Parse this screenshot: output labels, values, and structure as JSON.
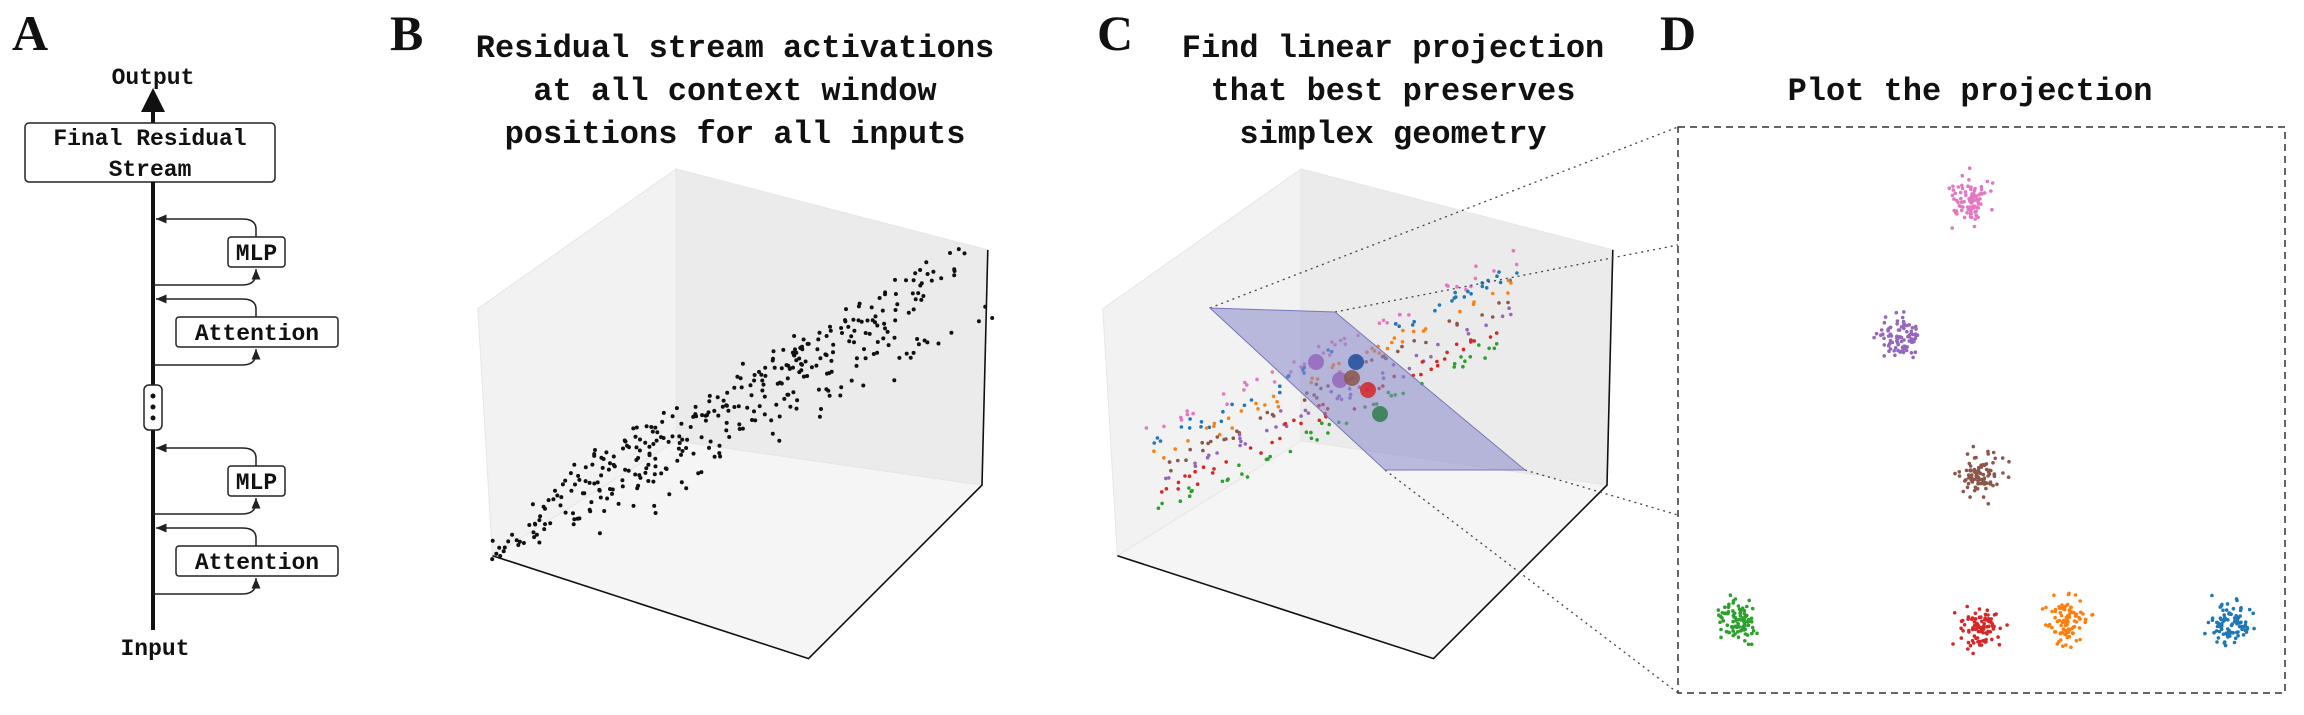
{
  "panel_a": {
    "label": "A",
    "output": "Output",
    "final_box": [
      "Final Residual",
      "Stream"
    ],
    "blocks": [
      "MLP",
      "Attention",
      "MLP",
      "Attention"
    ],
    "input": "Input"
  },
  "panel_b": {
    "label": "B",
    "title_lines": [
      "Residual stream activations",
      "at all context window",
      "positions for all inputs"
    ]
  },
  "panel_c": {
    "label": "C",
    "title_lines": [
      "Find linear projection",
      "that best preserves",
      "simplex geometry"
    ]
  },
  "panel_d": {
    "label": "D",
    "title": "Plot the projection"
  }
}
